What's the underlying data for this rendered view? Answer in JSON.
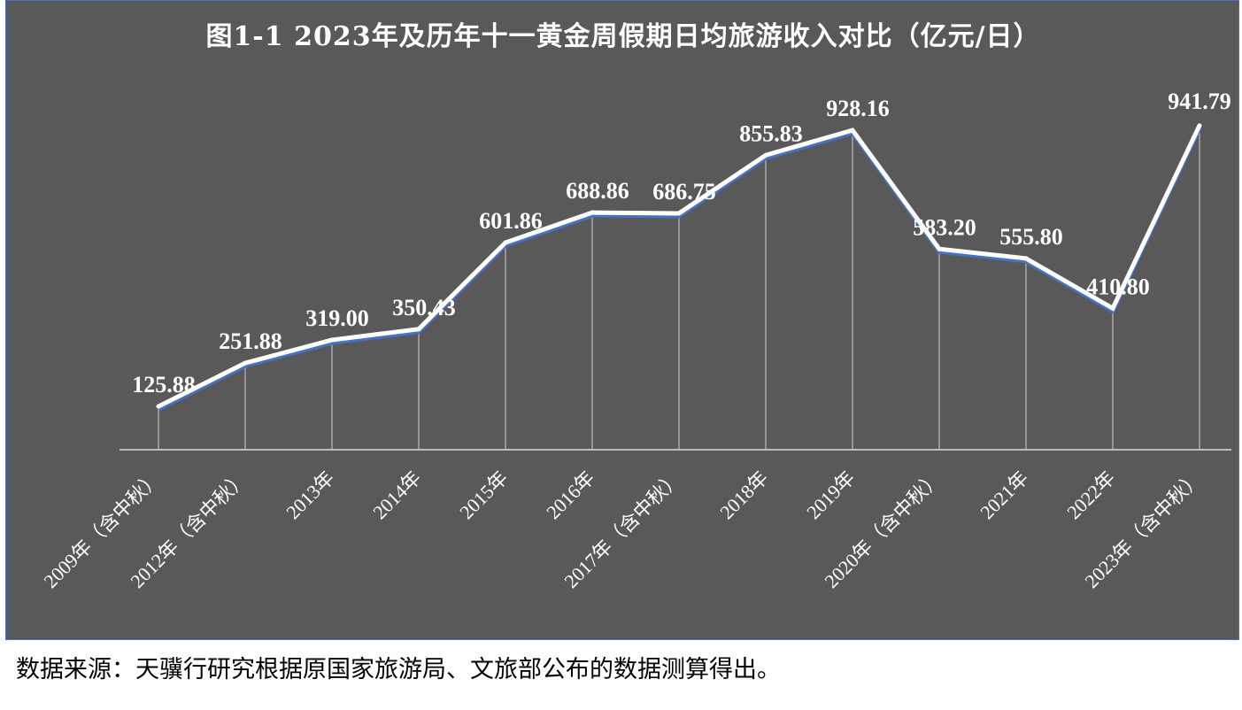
{
  "title": "图1-1   2023年及历年十一黄金周假期日均旅游收入对比（亿元/日）",
  "source_note": "数据来源：天骥行研究根据原国家旅游局、文旅部公布的数据测算得出。",
  "colors": {
    "panel_background": "#595959",
    "line": "#ffffff",
    "line_shadow": "#4472c4",
    "text": "#ffffff"
  },
  "chart_data": {
    "type": "line",
    "title": "图1-1   2023年及历年十一黄金周假期日均旅游收入对比（亿元/日）",
    "xlabel": "",
    "ylabel": "",
    "ylim": [
      0,
      1000
    ],
    "grid": false,
    "legend": "none",
    "drop_lines": true,
    "categories": [
      "2009年（含中秋）",
      "2012年（含中秋）",
      "2013年",
      "2014年",
      "2015年",
      "2016年",
      "2017年（含中秋）",
      "2018年",
      "2019年",
      "2020年（含中秋）",
      "2021年",
      "2022年",
      "2023年（含中秋）"
    ],
    "series": [
      {
        "values": [
          125.88,
          251.88,
          319.0,
          350.43,
          601.86,
          688.86,
          686.75,
          855.83,
          928.16,
          583.2,
          555.8,
          410.8,
          941.79
        ],
        "labels": [
          "125.88",
          "251.88",
          "319.00",
          "350.43",
          "601.86",
          "688.86",
          "686.75",
          "855.83",
          "928.16",
          "583.20",
          "555.80",
          "410.80",
          "941.79"
        ]
      }
    ]
  }
}
